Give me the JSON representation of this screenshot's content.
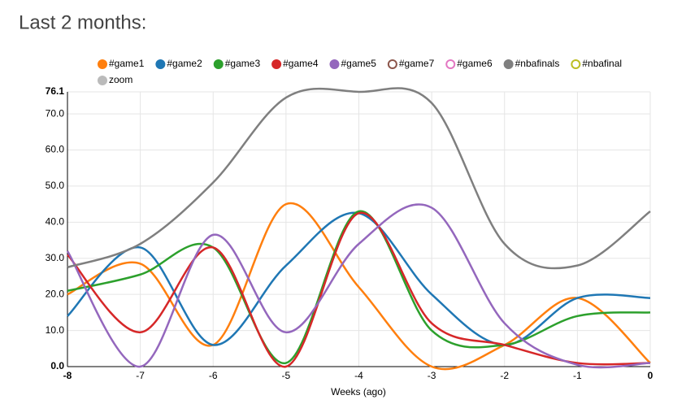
{
  "chart_data": {
    "type": "line",
    "title": "Last 2 months:",
    "x_label": "Weeks (ago)",
    "x": [
      -8,
      -7,
      -6,
      -5,
      -4,
      -3,
      -2,
      -1,
      0
    ],
    "xlim": [
      -8,
      0
    ],
    "xticks": [
      -8,
      -7,
      -6,
      -5,
      -4,
      -3,
      -2,
      -1,
      0
    ],
    "ylim": [
      0,
      76.1
    ],
    "yticks": [
      {
        "value": 0,
        "label": "0.0"
      },
      {
        "value": 10,
        "label": "10.0"
      },
      {
        "value": 20,
        "label": "20.0"
      },
      {
        "value": 30,
        "label": "30.0"
      },
      {
        "value": 40,
        "label": "40.0"
      },
      {
        "value": 50,
        "label": "50.0"
      },
      {
        "value": 60,
        "label": "60.0"
      },
      {
        "value": 70,
        "label": "70.0"
      },
      {
        "value": 76.1,
        "label": "76.1"
      }
    ],
    "grid": true,
    "series": [
      {
        "name": "#game1",
        "color": "#ff7f0e",
        "values": [
          20,
          28.5,
          6,
          45,
          22,
          0,
          6,
          19,
          1
        ]
      },
      {
        "name": "#game2",
        "color": "#1f77b4",
        "values": [
          14,
          33,
          6,
          28,
          42.5,
          20,
          6,
          19,
          19
        ]
      },
      {
        "name": "#game3",
        "color": "#2ca02c",
        "values": [
          21,
          25.5,
          33,
          1,
          43,
          10,
          6,
          14,
          15
        ]
      },
      {
        "name": "#game4",
        "color": "#d62728",
        "values": [
          31,
          9.5,
          33,
          0,
          42.5,
          12,
          6,
          1,
          1
        ]
      },
      {
        "name": "#game5",
        "color": "#9467bd",
        "values": [
          32,
          0,
          36.5,
          9.5,
          34,
          44,
          12,
          0.5,
          1
        ]
      },
      {
        "name": "#game7",
        "color": "#8c564b",
        "disabled": true
      },
      {
        "name": "#game6",
        "color": "#e377c2",
        "disabled": true
      },
      {
        "name": "#nbafinals",
        "color": "#7f7f7f",
        "values": [
          27.5,
          34,
          51,
          74.5,
          76.1,
          73,
          34,
          28,
          43
        ]
      },
      {
        "name": "#nbafinal",
        "color": "#bcbd22",
        "disabled": true
      },
      {
        "name": "zoom",
        "color": "#bbbbbb"
      }
    ]
  }
}
